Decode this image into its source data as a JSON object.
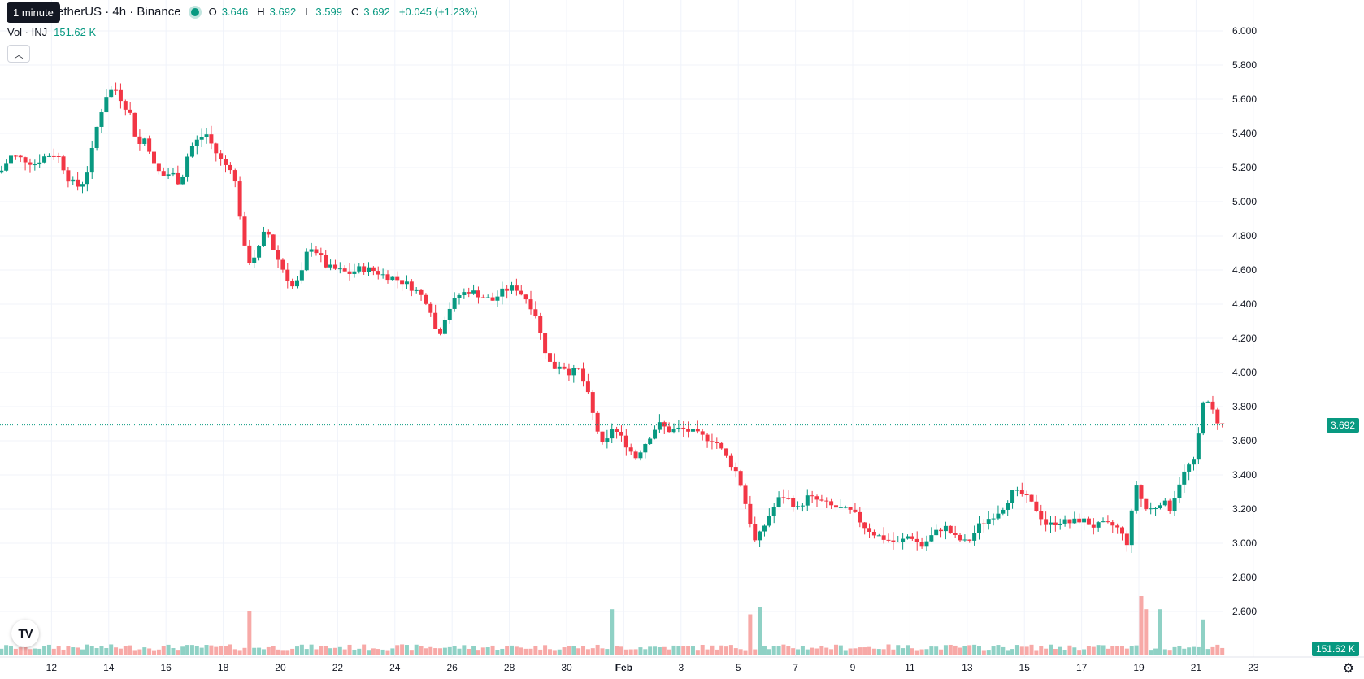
{
  "header": {
    "tooltip": "1 minute",
    "symbol": "etherUS · 4h · Binance",
    "ohlc": {
      "o_label": "O",
      "o": "3.646",
      "h_label": "H",
      "h": "3.692",
      "l_label": "L",
      "l": "3.599",
      "c_label": "C",
      "c": "3.692",
      "change": "+0.045 (+1.23%)"
    },
    "volume_label": "Vol · INJ",
    "volume_value": "151.62 K"
  },
  "price_tag": "3.692",
  "volume_tag": "151.62 K",
  "colors": {
    "up": "#089981",
    "down": "#f23645",
    "up_vol": "#8fd1c5",
    "down_vol": "#f7a9a7",
    "grid": "#f0f3fa"
  },
  "icons": {
    "collapse": "chevron-up-icon",
    "logo": "tradingview-logo-icon",
    "settings": "gear-icon"
  },
  "chart_data": {
    "type": "candlestick",
    "x_ticks": [
      {
        "label": "12",
        "day": 12
      },
      {
        "label": "14",
        "day": 14
      },
      {
        "label": "16",
        "day": 16
      },
      {
        "label": "18",
        "day": 18
      },
      {
        "label": "20",
        "day": 20
      },
      {
        "label": "22",
        "day": 22
      },
      {
        "label": "24",
        "day": 24
      },
      {
        "label": "26",
        "day": 26
      },
      {
        "label": "28",
        "day": 28
      },
      {
        "label": "30",
        "day": 30
      },
      {
        "label": "Feb",
        "day": 32
      },
      {
        "label": "3",
        "day": 34
      },
      {
        "label": "5",
        "day": 36
      },
      {
        "label": "7",
        "day": 38
      },
      {
        "label": "9",
        "day": 40
      },
      {
        "label": "11",
        "day": 42
      },
      {
        "label": "13",
        "day": 44
      },
      {
        "label": "15",
        "day": 46
      },
      {
        "label": "17",
        "day": 48
      },
      {
        "label": "19",
        "day": 50
      },
      {
        "label": "21",
        "day": 52
      },
      {
        "label": "23",
        "day": 54
      }
    ],
    "y_ticks": [
      "6.000",
      "5.800",
      "5.600",
      "5.400",
      "5.200",
      "5.000",
      "4.800",
      "4.600",
      "4.400",
      "4.200",
      "4.000",
      "3.800",
      "3.600",
      "3.400",
      "3.200",
      "3.000",
      "2.800",
      "2.600"
    ],
    "ylim": [
      2.6,
      6.0
    ],
    "x_range_days": [
      10.2,
      54.8
    ],
    "current_price": 3.692,
    "price_path": [
      [
        10.2,
        5.17
      ],
      [
        10.6,
        5.27
      ],
      [
        11.0,
        5.25
      ],
      [
        11.4,
        5.22
      ],
      [
        11.8,
        5.27
      ],
      [
        12.2,
        5.28
      ],
      [
        12.6,
        5.13
      ],
      [
        13.0,
        5.08
      ],
      [
        13.3,
        5.2
      ],
      [
        13.6,
        5.45
      ],
      [
        13.9,
        5.62
      ],
      [
        14.2,
        5.67
      ],
      [
        14.5,
        5.58
      ],
      [
        14.8,
        5.5
      ],
      [
        15.0,
        5.32
      ],
      [
        15.3,
        5.38
      ],
      [
        15.6,
        5.2
      ],
      [
        15.9,
        5.15
      ],
      [
        16.2,
        5.17
      ],
      [
        16.5,
        5.1
      ],
      [
        16.8,
        5.3
      ],
      [
        17.1,
        5.36
      ],
      [
        17.4,
        5.4
      ],
      [
        17.7,
        5.3
      ],
      [
        18.0,
        5.22
      ],
      [
        18.3,
        5.2
      ],
      [
        18.5,
        5.05
      ],
      [
        18.7,
        4.75
      ],
      [
        18.9,
        4.65
      ],
      [
        19.2,
        4.7
      ],
      [
        19.5,
        4.85
      ],
      [
        19.8,
        4.7
      ],
      [
        20.1,
        4.6
      ],
      [
        20.4,
        4.5
      ],
      [
        20.7,
        4.55
      ],
      [
        21.0,
        4.75
      ],
      [
        21.3,
        4.7
      ],
      [
        21.6,
        4.62
      ],
      [
        22.0,
        4.6
      ],
      [
        22.4,
        4.58
      ],
      [
        22.8,
        4.61
      ],
      [
        23.2,
        4.6
      ],
      [
        23.6,
        4.57
      ],
      [
        24.0,
        4.55
      ],
      [
        24.4,
        4.52
      ],
      [
        24.8,
        4.47
      ],
      [
        25.2,
        4.4
      ],
      [
        25.5,
        4.2
      ],
      [
        25.8,
        4.35
      ],
      [
        26.2,
        4.45
      ],
      [
        26.6,
        4.48
      ],
      [
        27.0,
        4.45
      ],
      [
        27.4,
        4.42
      ],
      [
        27.8,
        4.48
      ],
      [
        28.2,
        4.5
      ],
      [
        28.6,
        4.43
      ],
      [
        28.9,
        4.35
      ],
      [
        29.2,
        4.15
      ],
      [
        29.5,
        4.02
      ],
      [
        29.8,
        4.05
      ],
      [
        30.1,
        4.0
      ],
      [
        30.4,
        4.02
      ],
      [
        30.7,
        3.9
      ],
      [
        31.0,
        3.7
      ],
      [
        31.3,
        3.55
      ],
      [
        31.6,
        3.68
      ],
      [
        32.0,
        3.6
      ],
      [
        32.4,
        3.5
      ],
      [
        32.8,
        3.6
      ],
      [
        33.2,
        3.7
      ],
      [
        33.6,
        3.66
      ],
      [
        34.0,
        3.67
      ],
      [
        34.4,
        3.65
      ],
      [
        34.8,
        3.62
      ],
      [
        35.2,
        3.6
      ],
      [
        35.6,
        3.5
      ],
      [
        36.0,
        3.4
      ],
      [
        36.3,
        3.2
      ],
      [
        36.6,
        3.0
      ],
      [
        36.9,
        3.1
      ],
      [
        37.2,
        3.2
      ],
      [
        37.5,
        3.28
      ],
      [
        37.8,
        3.25
      ],
      [
        38.1,
        3.2
      ],
      [
        38.4,
        3.27
      ],
      [
        38.8,
        3.25
      ],
      [
        39.2,
        3.22
      ],
      [
        39.6,
        3.2
      ],
      [
        40.0,
        3.18
      ],
      [
        40.4,
        3.1
      ],
      [
        40.8,
        3.05
      ],
      [
        41.2,
        3.02
      ],
      [
        41.6,
        3.0
      ],
      [
        42.0,
        3.05
      ],
      [
        42.4,
        2.98
      ],
      [
        42.8,
        3.05
      ],
      [
        43.2,
        3.1
      ],
      [
        43.6,
        3.03
      ],
      [
        44.0,
        3.0
      ],
      [
        44.4,
        3.1
      ],
      [
        44.8,
        3.15
      ],
      [
        45.2,
        3.2
      ],
      [
        45.6,
        3.3
      ],
      [
        46.0,
        3.28
      ],
      [
        46.4,
        3.2
      ],
      [
        46.8,
        3.1
      ],
      [
        47.2,
        3.13
      ],
      [
        47.6,
        3.12
      ],
      [
        48.0,
        3.14
      ],
      [
        48.4,
        3.1
      ],
      [
        48.8,
        3.11
      ],
      [
        49.2,
        3.1
      ],
      [
        49.6,
        3.0
      ],
      [
        49.9,
        3.35
      ],
      [
        50.2,
        3.2
      ],
      [
        50.5,
        3.2
      ],
      [
        50.8,
        3.25
      ],
      [
        51.1,
        3.2
      ],
      [
        51.4,
        3.35
      ],
      [
        51.7,
        3.45
      ],
      [
        52.0,
        3.48
      ],
      [
        52.2,
        3.85
      ],
      [
        52.5,
        3.8
      ],
      [
        52.8,
        3.7
      ],
      [
        53.0,
        3.692
      ]
    ],
    "volume_spikes": [
      [
        18.9,
        0.6
      ],
      [
        31.6,
        0.62
      ],
      [
        36.5,
        0.55
      ],
      [
        36.7,
        0.65
      ],
      [
        50.0,
        0.8
      ],
      [
        50.3,
        0.62
      ],
      [
        50.7,
        0.62
      ],
      [
        52.2,
        0.48
      ]
    ]
  }
}
